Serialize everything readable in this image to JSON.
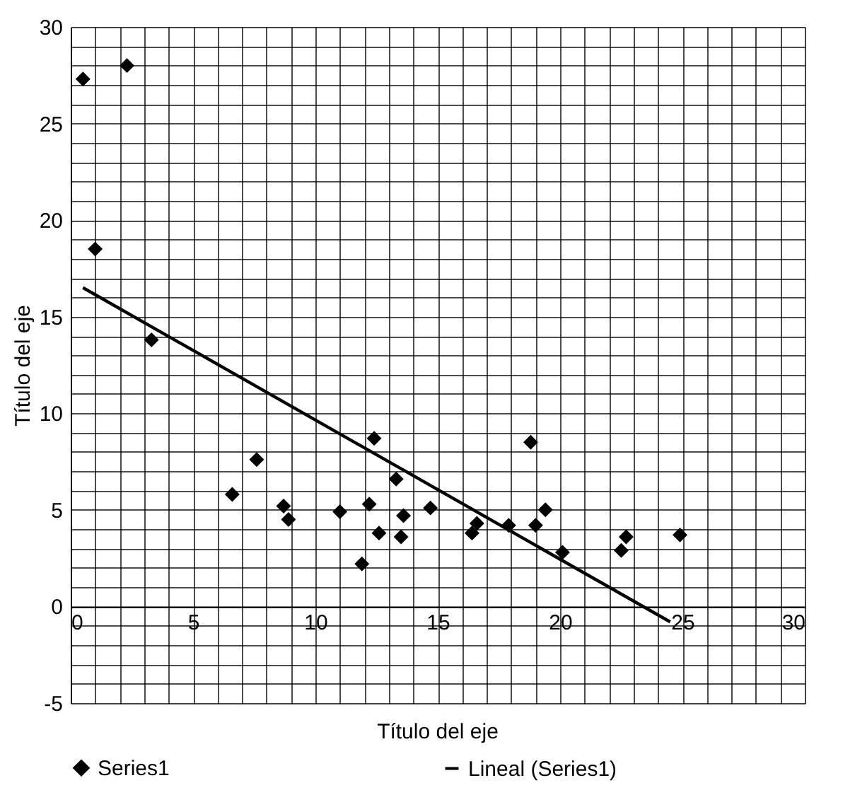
{
  "chart_data": {
    "type": "scatter",
    "xlabel": "Título del eje",
    "ylabel": "Título del eje",
    "xlim": [
      0,
      30
    ],
    "ylim": [
      -5,
      30
    ],
    "xticks": [
      0,
      {
        "value": 1,
        "label": null
      },
      {
        "value": 2,
        "label": null
      },
      {
        "value": 3,
        "label": null
      },
      {
        "value": 4,
        "label": null
      },
      5,
      {
        "value": 6,
        "label": null
      },
      {
        "value": 7,
        "label": null
      },
      {
        "value": 8,
        "label": null
      },
      {
        "value": 9,
        "label": null
      },
      10,
      {
        "value": 11,
        "label": null
      },
      {
        "value": 12,
        "label": null
      },
      {
        "value": 13,
        "label": null
      },
      {
        "value": 14,
        "label": null
      },
      15,
      {
        "value": 16,
        "label": null
      },
      {
        "value": 17,
        "label": null
      },
      {
        "value": 18,
        "label": null
      },
      {
        "value": 19,
        "label": null
      },
      20,
      {
        "value": 21,
        "label": null
      },
      {
        "value": 22,
        "label": null
      },
      {
        "value": 23,
        "label": null
      },
      {
        "value": 24,
        "label": null
      },
      25,
      {
        "value": 26,
        "label": null
      },
      {
        "value": 27,
        "label": null
      },
      {
        "value": 28,
        "label": null
      },
      {
        "value": 29,
        "label": null
      },
      30
    ],
    "yticks": [
      -5,
      {
        "value": -4,
        "label": null
      },
      {
        "value": -3,
        "label": null
      },
      {
        "value": -2,
        "label": null
      },
      {
        "value": -1,
        "label": null
      },
      0,
      {
        "value": 1,
        "label": null
      },
      {
        "value": 2,
        "label": null
      },
      {
        "value": 3,
        "label": null
      },
      {
        "value": 4,
        "label": null
      },
      5,
      {
        "value": 6,
        "label": null
      },
      {
        "value": 7,
        "label": null
      },
      {
        "value": 8,
        "label": null
      },
      {
        "value": 9,
        "label": null
      },
      10,
      {
        "value": 11,
        "label": null
      },
      {
        "value": 12,
        "label": null
      },
      {
        "value": 13,
        "label": null
      },
      {
        "value": 14,
        "label": null
      },
      15,
      {
        "value": 16,
        "label": null
      },
      {
        "value": 17,
        "label": null
      },
      {
        "value": 18,
        "label": null
      },
      {
        "value": 19,
        "label": null
      },
      20,
      {
        "value": 21,
        "label": null
      },
      {
        "value": 22,
        "label": null
      },
      {
        "value": 23,
        "label": null
      },
      {
        "value": 24,
        "label": null
      },
      25,
      {
        "value": 26,
        "label": null
      },
      {
        "value": 27,
        "label": null
      },
      {
        "value": 28,
        "label": null
      },
      {
        "value": 29,
        "label": null
      },
      30
    ],
    "grid": true,
    "legend": "bottom",
    "series": [
      {
        "name": "Series1",
        "color": "#000000",
        "marker": "diamond",
        "x": [
          0.5,
          2.3,
          1.0,
          3.3,
          6.6,
          7.6,
          8.7,
          8.9,
          11.0,
          11.9,
          12.2,
          12.4,
          12.6,
          13.3,
          13.5,
          13.6,
          14.7,
          16.4,
          16.6,
          17.9,
          18.8,
          19.0,
          19.4,
          20.1,
          22.5,
          22.7,
          24.9
        ],
        "values": [
          27.3,
          28.0,
          18.5,
          13.8,
          5.8,
          7.6,
          5.2,
          4.5,
          4.9,
          2.2,
          5.3,
          8.7,
          3.8,
          6.6,
          3.6,
          4.7,
          5.1,
          3.8,
          4.3,
          4.2,
          8.5,
          4.2,
          5.0,
          2.8,
          2.9,
          3.6,
          3.7
        ]
      },
      {
        "name": "Lineal (Series1)",
        "color": "#000000",
        "type": "line",
        "line_style": "solid",
        "x": [
          0.5,
          24.5
        ],
        "values": [
          16.5,
          -0.8
        ]
      }
    ]
  }
}
